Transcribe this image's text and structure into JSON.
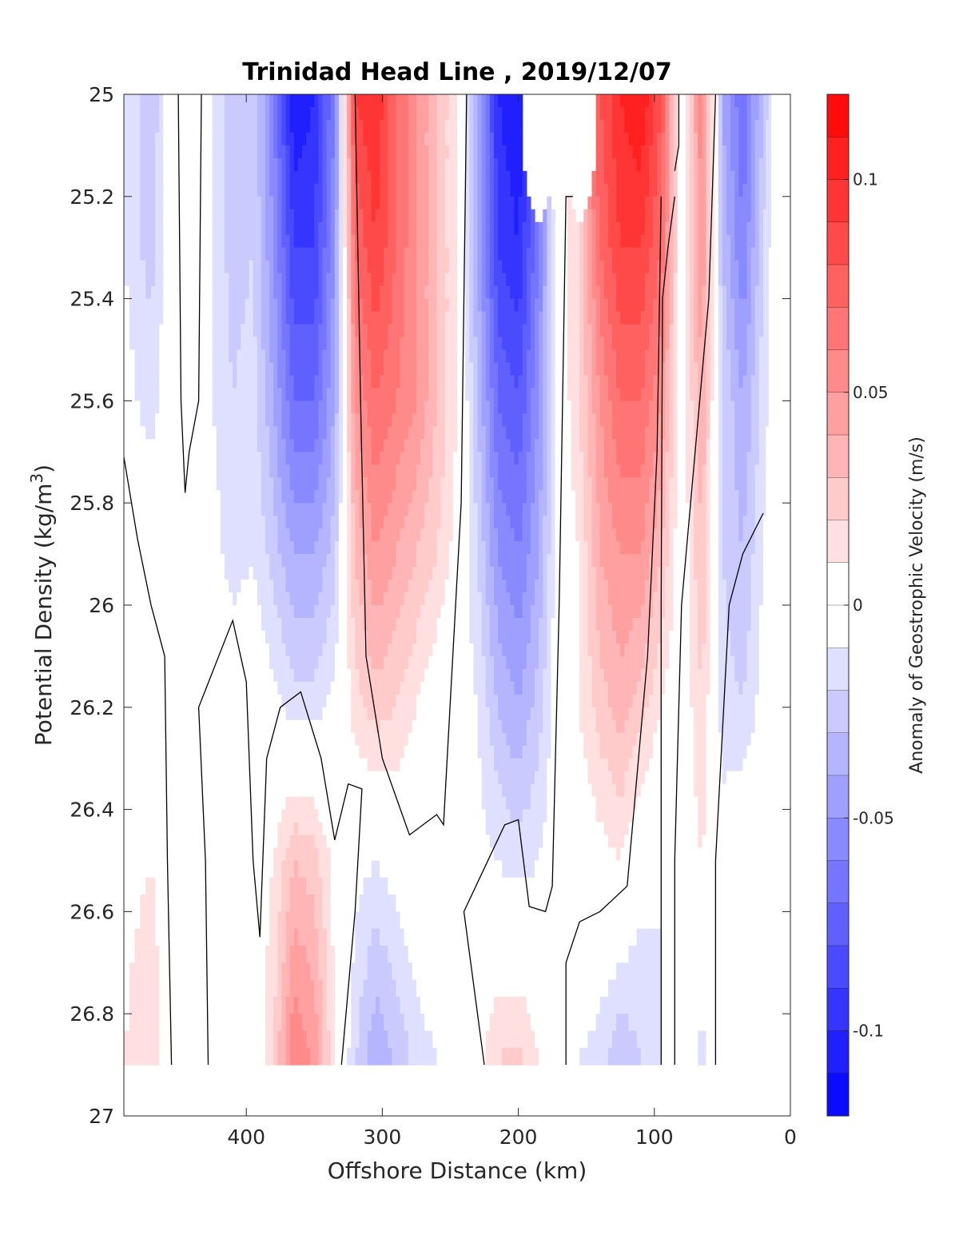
{
  "chart_data": {
    "type": "heatmap",
    "subtype": "filled-contour-section",
    "title": "Trinidad Head Line , 2019/12/07",
    "xlabel": "Offshore Distance (km)",
    "ylabel_main": "Potential Density (kg/m",
    "ylabel_sup": "3",
    "ylabel_close": ")",
    "xlim": [
      490,
      0
    ],
    "x_reversed": true,
    "ylim": [
      25,
      27
    ],
    "y_reversed": true,
    "x_ticks": [
      400,
      300,
      200,
      100,
      0
    ],
    "x_tick_labels": [
      "400",
      "300",
      "200",
      "100",
      "0"
    ],
    "y_ticks": [
      25,
      25.2,
      25.4,
      25.6,
      25.8,
      26,
      26.2,
      26.4,
      26.6,
      26.8,
      27
    ],
    "y_tick_labels": [
      "25",
      "25.2",
      "25.4",
      "25.6",
      "25.8",
      "26",
      "26.2",
      "26.4",
      "26.6",
      "26.8",
      "27"
    ],
    "data_bottom_density": 26.9,
    "colorbar": {
      "label": "Anomaly of Geostrophic Velocity (m/s)",
      "limits": [
        -0.12,
        0.12
      ],
      "level_step": 0.01,
      "ticks": [
        0.1,
        0.05,
        0,
        -0.05,
        -0.1
      ],
      "tick_labels": [
        "0.1",
        "0.05",
        "0",
        "-0.05",
        "-0.1"
      ],
      "colormap": "blue-white-red",
      "color_negative": "#0000ff",
      "color_zero": "#ffffff",
      "color_positive": "#ff0000"
    },
    "grid": false,
    "anomaly_field": {
      "x_km": [
        490,
        470,
        455,
        440,
        425,
        410,
        395,
        380,
        365,
        350,
        335,
        320,
        305,
        290,
        275,
        260,
        245,
        230,
        215,
        200,
        185,
        170,
        155,
        140,
        125,
        110,
        95,
        80,
        65,
        50,
        35,
        20,
        10
      ],
      "rows": [
        {
          "density": 25.0,
          "values": [
            -0.01,
            -0.03,
            0.0,
            0.01,
            -0.01,
            -0.03,
            -0.02,
            -0.06,
            -0.11,
            -0.1,
            -0.06,
            0.09,
            0.1,
            0.07,
            0.05,
            0.03,
            0.01,
            -0.04,
            -0.1,
            -0.11,
            null,
            null,
            null,
            0.08,
            0.1,
            0.11,
            0.08,
            0.0,
            0.06,
            -0.04,
            -0.07,
            -0.03,
            0.0
          ]
        },
        {
          "density": 25.3,
          "values": [
            -0.01,
            -0.025,
            0.0,
            0.01,
            -0.01,
            -0.025,
            -0.02,
            -0.05,
            -0.09,
            -0.09,
            -0.05,
            0.07,
            0.09,
            0.07,
            0.05,
            0.03,
            0.01,
            -0.04,
            -0.09,
            -0.1,
            -0.06,
            0.0,
            0.02,
            0.07,
            0.09,
            0.09,
            0.07,
            0.0,
            0.05,
            -0.03,
            -0.06,
            -0.02,
            0.0
          ]
        },
        {
          "density": 25.6,
          "values": [
            -0.005,
            -0.015,
            0.0,
            0.0,
            -0.01,
            -0.02,
            -0.015,
            -0.04,
            -0.07,
            -0.07,
            -0.04,
            0.05,
            0.07,
            0.06,
            0.05,
            0.03,
            0.01,
            -0.03,
            -0.07,
            -0.08,
            -0.05,
            0.0,
            0.02,
            0.05,
            0.07,
            0.07,
            0.05,
            0.0,
            0.04,
            -0.02,
            -0.04,
            -0.015,
            0.0
          ]
        },
        {
          "density": 25.9,
          "values": [
            0.0,
            0.0,
            0.0,
            0.0,
            -0.005,
            -0.015,
            -0.01,
            -0.025,
            -0.04,
            -0.04,
            -0.025,
            0.03,
            0.05,
            0.04,
            0.03,
            0.02,
            0.005,
            -0.02,
            -0.05,
            -0.06,
            -0.04,
            0.0,
            0.01,
            0.04,
            0.05,
            0.05,
            0.03,
            0.0,
            0.03,
            -0.02,
            -0.03,
            -0.01,
            0.0
          ]
        },
        {
          "density": 26.2,
          "values": [
            0.0,
            0.0,
            0.0,
            0.0,
            0.0,
            0.0,
            0.0,
            -0.005,
            -0.015,
            -0.015,
            -0.005,
            0.015,
            0.025,
            0.02,
            0.01,
            0.0,
            -0.005,
            -0.01,
            -0.03,
            -0.04,
            -0.025,
            0.0,
            0.01,
            0.025,
            0.035,
            0.025,
            0.01,
            0.0,
            0.02,
            -0.015,
            -0.02,
            -0.005,
            0.0
          ]
        },
        {
          "density": 26.5,
          "values": [
            0.005,
            0.01,
            0.0,
            0.0,
            0.0,
            0.005,
            0.0,
            0.01,
            0.03,
            0.025,
            0.005,
            -0.005,
            -0.01,
            -0.005,
            0.0,
            0.0,
            -0.005,
            -0.005,
            -0.01,
            -0.015,
            -0.01,
            0.0,
            0.0,
            0.005,
            0.01,
            -0.005,
            -0.01,
            0.0,
            0.01,
            -0.005,
            0.005,
            0.005,
            0.0
          ]
        },
        {
          "density": 26.9,
          "values": [
            0.01,
            0.02,
            0.0,
            0.0,
            0.0,
            0.01,
            0.0,
            0.02,
            0.06,
            0.05,
            0.01,
            -0.02,
            -0.04,
            -0.03,
            -0.015,
            -0.01,
            -0.005,
            0.005,
            0.02,
            0.025,
            0.01,
            0.0,
            -0.01,
            -0.015,
            -0.03,
            -0.02,
            -0.01,
            0.0,
            -0.015,
            0.0,
            0.01,
            0.005,
            0.0
          ]
        }
      ]
    },
    "zero_contour_lines": [
      {
        "points": [
          [
            490,
            25.71
          ],
          [
            480,
            25.87
          ],
          [
            470,
            26.0
          ],
          [
            460,
            26.1
          ],
          [
            458,
            26.5
          ],
          [
            455,
            26.9
          ]
        ]
      },
      {
        "points": [
          [
            450,
            25.0
          ],
          [
            448,
            25.6
          ],
          [
            445,
            25.78
          ],
          [
            442,
            25.7
          ],
          [
            435,
            25.6
          ],
          [
            433,
            25.0
          ]
        ]
      },
      {
        "points": [
          [
            428,
            26.9
          ],
          [
            430,
            26.5
          ],
          [
            435,
            26.2
          ],
          [
            410,
            26.03
          ],
          [
            400,
            26.15
          ],
          [
            395,
            26.5
          ],
          [
            390,
            26.65
          ],
          [
            385,
            26.3
          ],
          [
            375,
            26.2
          ],
          [
            360,
            26.17
          ],
          [
            345,
            26.3
          ],
          [
            335,
            26.46
          ],
          [
            325,
            26.35
          ],
          [
            315,
            26.36
          ],
          [
            320,
            26.6
          ],
          [
            330,
            26.9
          ]
        ]
      },
      {
        "points": [
          [
            320,
            25.0
          ],
          [
            316,
            25.6
          ],
          [
            312,
            26.1
          ],
          [
            300,
            26.3
          ],
          [
            280,
            26.45
          ],
          [
            260,
            26.41
          ],
          [
            255,
            26.43
          ],
          [
            242,
            25.8
          ],
          [
            238,
            25.0
          ]
        ]
      },
      {
        "points": [
          [
            225,
            26.9
          ],
          [
            240,
            26.6
          ],
          [
            210,
            26.43
          ],
          [
            200,
            26.42
          ],
          [
            192,
            26.59
          ],
          [
            180,
            26.6
          ],
          [
            175,
            26.55
          ],
          [
            170,
            26.0
          ],
          [
            165,
            25.2
          ],
          [
            160,
            25.2
          ]
        ]
      },
      {
        "points": [
          [
            165,
            26.9
          ],
          [
            165,
            26.7
          ],
          [
            155,
            26.62
          ],
          [
            140,
            26.6
          ],
          [
            120,
            26.55
          ],
          [
            105,
            26.1
          ],
          [
            98,
            25.7
          ],
          [
            95,
            25.2
          ]
        ]
      },
      {
        "points": [
          [
            95,
            26.9
          ],
          [
            95,
            26.0
          ],
          [
            94,
            25.4
          ],
          [
            90,
            25.3
          ],
          [
            85,
            25.2
          ]
        ]
      },
      {
        "points": [
          [
            85,
            25.15
          ],
          [
            82,
            25.1
          ],
          [
            82,
            25.0
          ]
        ]
      },
      {
        "points": [
          [
            85,
            26.9
          ],
          [
            85,
            26.5
          ],
          [
            80,
            26.0
          ],
          [
            60,
            25.4
          ],
          [
            55,
            25.0
          ]
        ]
      },
      {
        "points": [
          [
            55,
            26.9
          ],
          [
            55,
            26.5
          ],
          [
            45,
            26.0
          ],
          [
            35,
            25.9
          ],
          [
            20,
            25.82
          ]
        ]
      }
    ]
  }
}
